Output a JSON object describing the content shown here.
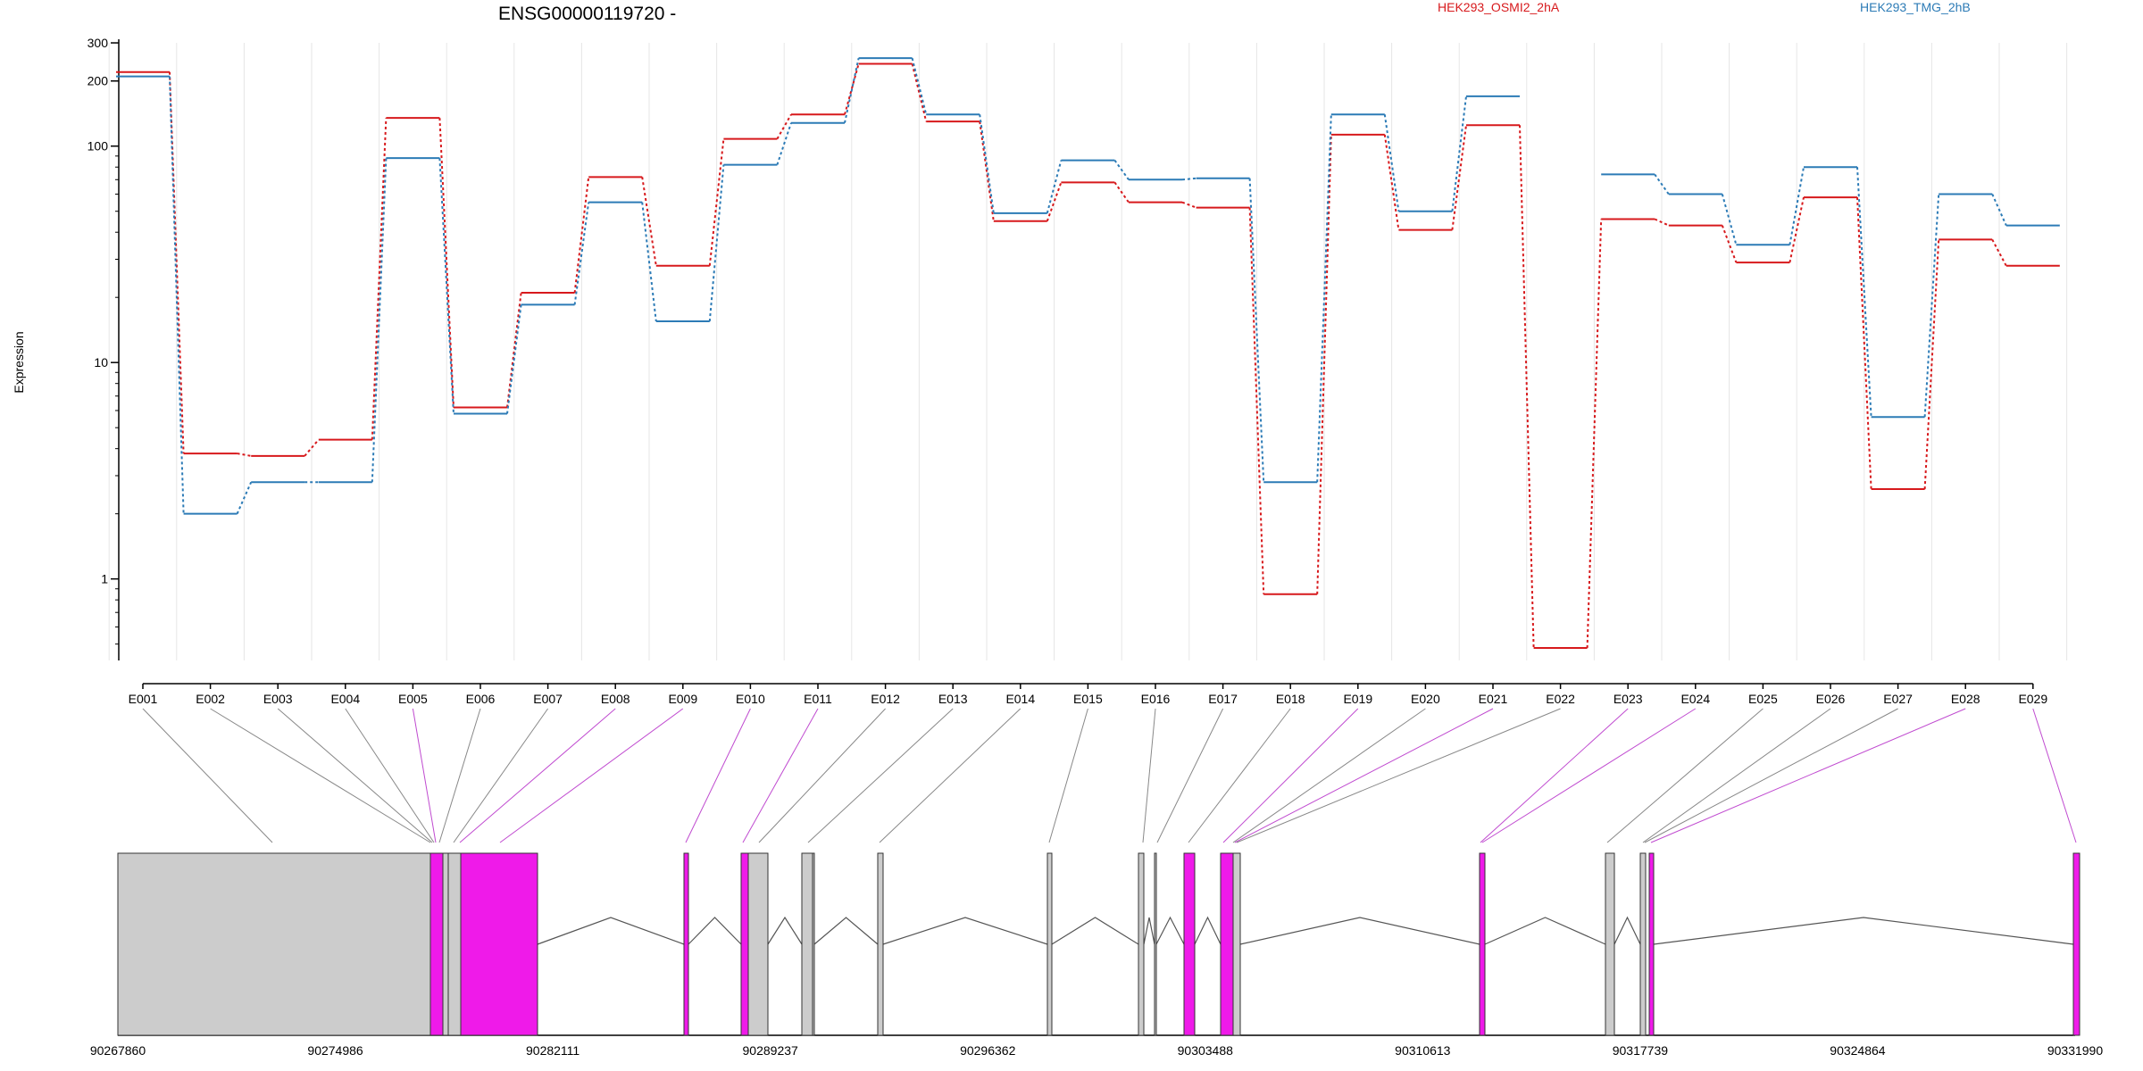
{
  "chart_data": {
    "type": "line",
    "title": "ENSG00000119720 -",
    "ylabel": "Expression",
    "xlabel": "",
    "y_scale": "log",
    "ylim": [
      0.42,
      330
    ],
    "y_ticks": [
      1,
      10,
      100,
      200,
      300
    ],
    "categories": [
      "E001",
      "E002",
      "E003",
      "E004",
      "E005",
      "E006",
      "E007",
      "E008",
      "E009",
      "E010",
      "E011",
      "E012",
      "E013",
      "E014",
      "E015",
      "E016",
      "E017",
      "E018",
      "E019",
      "E020",
      "E021",
      "E022",
      "E023",
      "E024",
      "E025",
      "E026",
      "E027",
      "E028",
      "E029"
    ],
    "series": [
      {
        "name": "HEK293_OSMI2_2hA",
        "color": "#d7191c",
        "values": [
          220,
          3.8,
          3.7,
          4.4,
          135,
          6.2,
          21,
          72,
          28,
          108,
          140,
          240,
          130,
          45,
          68,
          55,
          52,
          0.85,
          113,
          41,
          125,
          0.48,
          46,
          43,
          29,
          58,
          2.6,
          37,
          28
        ]
      },
      {
        "name": "HEK293_TMG_2hB",
        "color": "#2c7bb6",
        "values": [
          210,
          2.0,
          2.8,
          2.8,
          88,
          5.8,
          18.5,
          55,
          15.5,
          82,
          128,
          255,
          140,
          49,
          86,
          70,
          71,
          2.8,
          140,
          50,
          170,
          null,
          74,
          60,
          35,
          80,
          5.6,
          60,
          43
        ]
      }
    ],
    "gene_model": {
      "genomic_ticks": [
        "90267860",
        "90274986",
        "90282111",
        "90289237",
        "90296362",
        "90303488",
        "90310613",
        "90317739",
        "90324864",
        "90331990"
      ]
    }
  },
  "colors": {
    "highlight_exon": "#ef1ae9",
    "normal_exon": "#cccccc",
    "grid": "#e6e6e6"
  }
}
